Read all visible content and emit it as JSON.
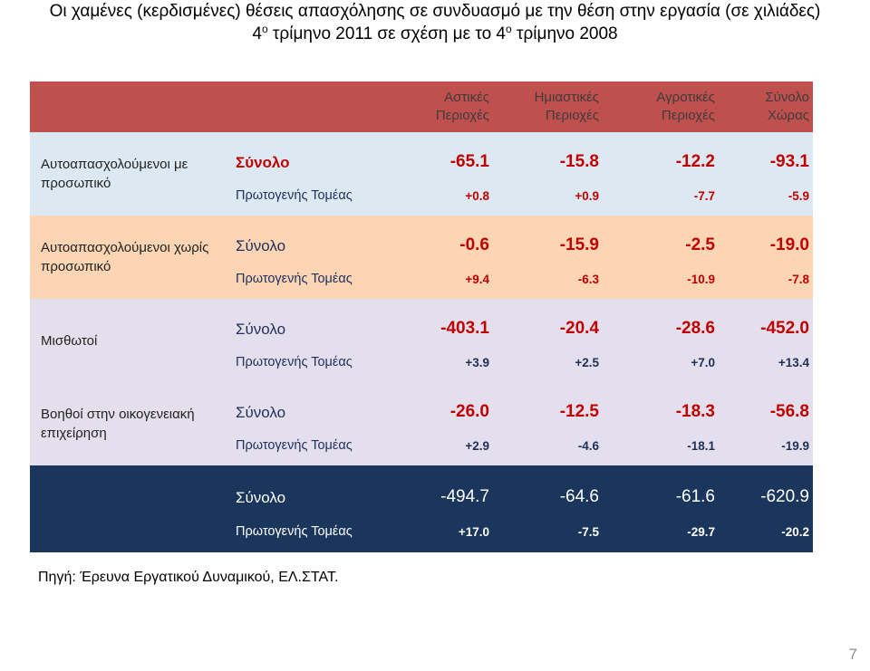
{
  "title": {
    "line1": "Οι χαμένες (κερδισμένες) θέσεις απασχόλησης σε συνδυασμό με την θέση στην εργασία (σε χιλιάδες)",
    "line2_num1": "4",
    "line2_sup1": "ο",
    "line2_mid": " τρίμηνο 2011 σε σχέση με το 4",
    "line2_sup2": "ο",
    "line2_end": " τρίμηνο 2008"
  },
  "columns": [
    {
      "line1": "Αστικές",
      "line2": "Περιοχές"
    },
    {
      "line1": "Ημιαστικές",
      "line2": "Περιοχές"
    },
    {
      "line1": "Αγροτικές",
      "line2": "Περιοχές"
    },
    {
      "line1": "Σύνολο",
      "line2": "Χώρας"
    }
  ],
  "groups": [
    {
      "category": "Αυτοαπασχολούμενοι με προσωπικό",
      "total_label": "Σύνολο",
      "total_values": [
        "-65.1",
        "-15.8",
        "-12.2",
        "-93.1"
      ],
      "primary_label": "Πρωτογενής Τομέας",
      "primary_values": [
        "+0.8",
        "+0.9",
        "-7.7",
        "-5.9"
      ]
    },
    {
      "category": "Αυτοαπασχολούμενοι χωρίς προσωπικό",
      "total_label": "Σύνολο",
      "total_values": [
        "-0.6",
        "-15.9",
        "-2.5",
        "-19.0"
      ],
      "primary_label": "Πρωτογενής Τομέας",
      "primary_values": [
        "+9.4",
        "-6.3",
        "-10.9",
        "-7.8"
      ]
    },
    {
      "category": "Μισθωτοί",
      "total_label": "Σύνολο",
      "total_values": [
        "-403.1",
        "-20.4",
        "-28.6",
        "-452.0"
      ],
      "primary_label": "Πρωτογενής Τομέας",
      "primary_values": [
        "+3.9",
        "+2.5",
        "+7.0",
        "+13.4"
      ]
    },
    {
      "category": "Βοηθοί στην οικογενειακή επιχείρηση",
      "total_label": "Σύνολο",
      "total_values": [
        "-26.0",
        "-12.5",
        "-18.3",
        "-56.8"
      ],
      "primary_label": "Πρωτογενής Τομέας",
      "primary_values": [
        "+2.9",
        "-4.6",
        "-18.1",
        "-19.9"
      ]
    }
  ],
  "grand_total": {
    "total_label": "Σύνολο",
    "total_values": [
      "-494.7",
      "-64.6",
      "-61.6",
      "-620.9"
    ],
    "primary_label": "Πρωτογενής Τομέας",
    "primary_values": [
      "+17.0",
      "-7.5",
      "-29.7",
      "-20.2"
    ]
  },
  "source": "Πηγή: Έρευνα Εργατικού Δυναμικού, ΕΛ.ΣΤΑΤ.",
  "page_number": "7",
  "colors": {
    "header": "#c0504d",
    "band_1": "#dde9f2",
    "band_2": "#fcd5b4",
    "band_3": "#e4dfec",
    "total_band": "#1b365d",
    "value_red": "#c00000",
    "text_navy": "#1f2f5a"
  }
}
